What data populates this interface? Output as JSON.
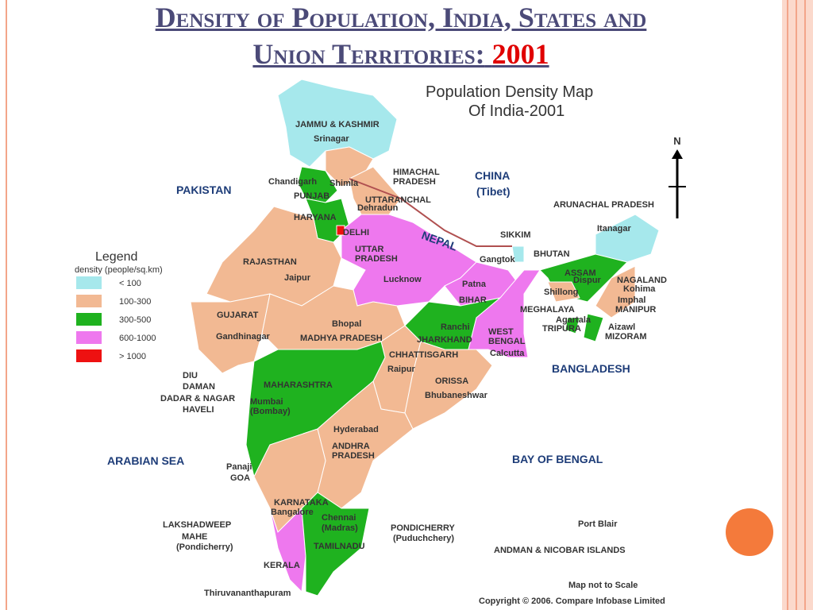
{
  "title": {
    "line1": "Density of Population, India, States and",
    "line2": "Union Territories:",
    "year": "2001"
  },
  "map": {
    "title_line1": "Population Density Map",
    "title_line2": "Of India-2001",
    "north": "N",
    "legend": {
      "title": "Legend",
      "subtitle": "density (people/sq.km)",
      "items": [
        {
          "label": "< 100",
          "color": "#a6e8ec"
        },
        {
          "label": "100-300",
          "color": "#f2b993"
        },
        {
          "label": "300-500",
          "color": "#1fb21f"
        },
        {
          "label": "600-1000",
          "color": "#ee78ee"
        },
        {
          "label": "> 1000",
          "color": "#ee1111"
        }
      ]
    },
    "labels": [
      "JAMMU & KASHMIR",
      "Srinagar",
      "Chandigarh",
      "Shimla",
      "HIMACHAL",
      "PRADESH",
      "PAKISTAN",
      "CHINA",
      "(Tibet)",
      "PUNJAB",
      "UTTARANCHAL",
      "Dehradun",
      "HARYANA",
      "DELHI",
      "NEPAL",
      "SIKKIM",
      "ARUNACHAL PRADESH",
      "Itanagar",
      "BHUTAN",
      "Gangtok",
      "UTTAR",
      "PRADESH",
      "RAJASTHAN",
      "Jaipur",
      "Lucknow",
      "Patna",
      "BIHAR",
      "ASSAM",
      "Dispur",
      "NAGALAND",
      "Kohima",
      "Imphal",
      "MANIPUR",
      "Shillong",
      "MEGHALAYA",
      "Agartala",
      "TRIPURA",
      "Aizawl",
      "MIZORAM",
      "GUJARAT",
      "Gandhinagar",
      "Bhopal",
      "MADHYA PRADESH",
      "Ranchi",
      "JHARKHAND",
      "WEST",
      "BENGAL",
      "Calcutta",
      "CHHATTISGARH",
      "Raipur",
      "BANGLADESH",
      "DIU",
      "DAMAN",
      "ORISSA",
      "Bhubaneshwar",
      "MAHARASHTRA",
      "DADAR & NAGAR",
      "HAVELI",
      "Mumbai",
      "(Bombay)",
      "Hyderabad",
      "ANDHRA",
      "PRADESH",
      "ARABIAN SEA",
      "BAY OF BENGAL",
      "Panaji",
      "GOA",
      "KARNATAKA",
      "Bangalore",
      "LAKSHADWEEP",
      "PONDICHERRY",
      "(Puduchchery)",
      "Chennai",
      "(Madras)",
      "Port Blair",
      "MAHE",
      "(Pondicherry)",
      "TAMILNADU",
      "ANDMAN & NICOBAR ISLANDS",
      "KERALA",
      "Map not to Scale",
      "Thiruvananthapuram",
      "Copyright © 2006. Compare Infobase Limited"
    ]
  }
}
